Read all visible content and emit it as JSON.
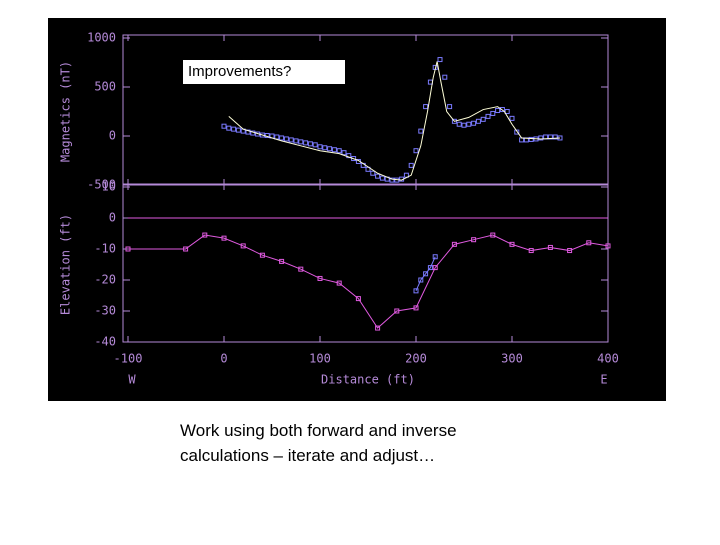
{
  "chart_data": [
    {
      "type": "line",
      "ylabel": "Magnetics (nT)",
      "annotation": "Improvements?",
      "xlim": [
        -100,
        400
      ],
      "xticks": [
        -100,
        0,
        100,
        200,
        300,
        400
      ],
      "ylim": [
        -500,
        1000
      ],
      "yticks": [
        -500,
        0,
        500,
        1000
      ],
      "series": [
        {
          "color": "#7b7bff",
          "marker": "square",
          "line": false,
          "x": [
            0,
            5,
            10,
            15,
            20,
            25,
            30,
            35,
            40,
            45,
            50,
            55,
            60,
            65,
            70,
            75,
            80,
            85,
            90,
            95,
            100,
            105,
            110,
            115,
            120,
            125,
            130,
            135,
            140,
            145,
            150,
            155,
            160,
            165,
            170,
            175,
            180,
            185,
            190,
            195,
            200,
            205,
            210,
            215,
            220,
            225,
            230,
            235,
            240,
            245,
            250,
            255,
            260,
            265,
            270,
            275,
            280,
            285,
            290,
            295,
            300,
            305,
            310,
            315,
            320,
            325,
            330,
            335,
            340,
            345,
            350
          ],
          "values": [
            100,
            80,
            70,
            60,
            50,
            40,
            30,
            20,
            10,
            5,
            0,
            -10,
            -20,
            -30,
            -40,
            -50,
            -60,
            -70,
            -80,
            -90,
            -110,
            -120,
            -130,
            -140,
            -150,
            -170,
            -200,
            -230,
            -260,
            -300,
            -340,
            -380,
            -410,
            -430,
            -440,
            -450,
            -450,
            -440,
            -400,
            -300,
            -150,
            50,
            300,
            550,
            700,
            780,
            600,
            300,
            150,
            120,
            110,
            120,
            130,
            150,
            170,
            200,
            230,
            260,
            270,
            250,
            180,
            40,
            -40,
            -40,
            -35,
            -30,
            -20,
            -10,
            -10,
            -10,
            -20
          ]
        },
        {
          "color": "#ffffd8",
          "marker": null,
          "line": true,
          "x": [
            5,
            20,
            40,
            60,
            80,
            100,
            120,
            140,
            160,
            175,
            185,
            195,
            205,
            212,
            218,
            222,
            226,
            232,
            240,
            255,
            270,
            285,
            292,
            300,
            310,
            330,
            350
          ],
          "values": [
            200,
            70,
            10,
            -50,
            -100,
            -150,
            -180,
            -250,
            -380,
            -440,
            -450,
            -400,
            -100,
            250,
            600,
            760,
            550,
            250,
            150,
            190,
            270,
            300,
            250,
            120,
            -20,
            -30,
            -20
          ]
        }
      ]
    },
    {
      "type": "line",
      "ylabel": "Elevation (ft)",
      "xlabel": "Distance (ft)",
      "x_end_labels": [
        "W",
        "E"
      ],
      "xlim": [
        -100,
        400
      ],
      "xticks": [
        -100,
        0,
        100,
        200,
        300,
        400
      ],
      "ylim": [
        -40,
        10
      ],
      "yticks": [
        -40,
        -30,
        -20,
        -10,
        0,
        10
      ],
      "zero_line": true,
      "series": [
        {
          "color": "#e05ae0",
          "marker": "square",
          "line": true,
          "x": [
            -100,
            -40,
            -20,
            0,
            20,
            40,
            60,
            80,
            100,
            120,
            140,
            160,
            180,
            200,
            220,
            240,
            260,
            280,
            300,
            320,
            340,
            360,
            380,
            400
          ],
          "values": [
            -10,
            -10,
            -5.5,
            -6.5,
            -9,
            -12,
            -14,
            -16.5,
            -19.5,
            -21,
            -26,
            -35.5,
            -30,
            -29,
            -16,
            -8.5,
            -7,
            -5.5,
            -8.5,
            -10.5,
            -9.5,
            -10.5,
            -8,
            -9
          ]
        },
        {
          "color": "#7b7bff",
          "marker": "square",
          "line": true,
          "x": [
            200,
            205,
            210,
            215,
            220
          ],
          "values": [
            -23.5,
            -20,
            -18,
            -16,
            -12.5
          ]
        }
      ]
    }
  ],
  "caption": [
    "Work using both forward and inverse",
    "calculations – iterate and adjust…"
  ]
}
